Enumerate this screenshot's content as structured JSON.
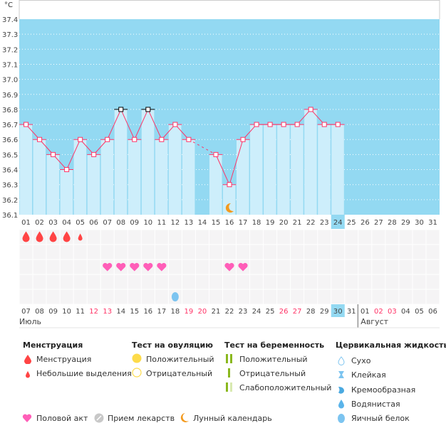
{
  "chart_data": {
    "type": "bar",
    "unit": "°C",
    "ylim": [
      36.1,
      37.4
    ],
    "yticks": [
      "37.4",
      "37.3",
      "37.2",
      "37.1",
      "37.0",
      "36.9",
      "36.8",
      "36.7",
      "36.6",
      "36.5",
      "36.4",
      "36.3",
      "36.2",
      "36.1"
    ],
    "days": [
      "01",
      "02",
      "03",
      "04",
      "05",
      "06",
      "07",
      "08",
      "09",
      "10",
      "11",
      "12",
      "13",
      "14",
      "15",
      "16",
      "17",
      "18",
      "19",
      "20",
      "21",
      "22",
      "23",
      "24",
      "25",
      "26",
      "27",
      "28",
      "29",
      "30",
      "31"
    ],
    "values": [
      36.7,
      36.6,
      36.5,
      36.4,
      36.6,
      36.5,
      36.6,
      36.8,
      36.6,
      36.8,
      36.6,
      36.7,
      36.6,
      null,
      36.5,
      36.3,
      36.6,
      36.7,
      36.7,
      36.7,
      36.7,
      36.8,
      36.7,
      36.7,
      null,
      null,
      null,
      null,
      null,
      null,
      null
    ],
    "dark_markers": [
      "08",
      "10"
    ],
    "current_day": "24",
    "moon_day": "16",
    "grid": true
  },
  "events": {
    "menstruation": [
      "01",
      "02",
      "03",
      "04"
    ],
    "spotting": [
      "05"
    ],
    "intercourse": [
      "07",
      "08",
      "09",
      "10",
      "11",
      "16",
      "17"
    ],
    "egg_white": [
      "12"
    ]
  },
  "calendar": {
    "dates": [
      "07",
      "08",
      "09",
      "10",
      "11",
      "12",
      "13",
      "14",
      "15",
      "16",
      "17",
      "18",
      "19",
      "20",
      "21",
      "22",
      "23",
      "24",
      "25",
      "26",
      "27",
      "28",
      "29",
      "30",
      "31",
      "01",
      "02",
      "03",
      "04",
      "05",
      "06"
    ],
    "weekend": [
      "12",
      "13",
      "19",
      "20",
      "26",
      "27",
      "02",
      "03"
    ],
    "weekend_index": [
      5,
      6,
      12,
      13,
      19,
      20,
      26,
      27
    ],
    "today_index": 23,
    "month_break_index": 25,
    "months": [
      "Июль",
      "Август"
    ]
  },
  "legend": {
    "menstruation": {
      "title": "Менструация",
      "items": [
        "Менструация",
        "Небольшие выделения"
      ]
    },
    "ovulation": {
      "title": "Тест на овуляцию",
      "items": [
        "Положительный",
        "Отрицательный"
      ]
    },
    "pregnancy": {
      "title": "Тест на беременность",
      "items": [
        "Положительный",
        "Отрицательный",
        "Слабоположительный"
      ]
    },
    "cervical": {
      "title": "Цервикальная жидкость",
      "items": [
        "Сухо",
        "Клейкая",
        "Кремообразная",
        "Водянистая",
        "Яичный белок"
      ]
    },
    "other": [
      "Половой акт",
      "Прием лекарств",
      "Лунный календарь"
    ]
  },
  "colors": {
    "bg": "#93d9f2",
    "bar": "#cdeefb",
    "line": "#ff3366",
    "heart": "#ff5eb8",
    "blood": "#ff4444",
    "egg": "#7cc4f0",
    "moon": "#f39a1e",
    "weekend": "#ff3366"
  }
}
